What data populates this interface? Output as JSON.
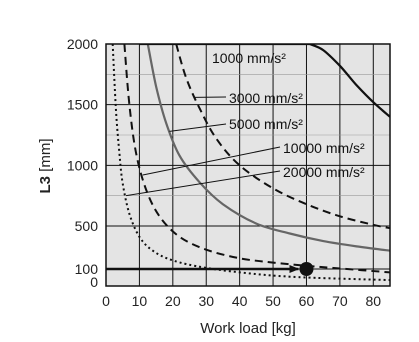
{
  "chart_data": {
    "type": "line",
    "xlabel": "Work load [kg]",
    "ylabel_bold": "L3",
    "ylabel_unit": " [mm]",
    "xlim": [
      0,
      85
    ],
    "ylim": [
      0,
      2000
    ],
    "xticks": [
      0,
      10,
      20,
      30,
      40,
      50,
      60,
      70,
      80
    ],
    "yticks": [
      0,
      100,
      500,
      1000,
      1500,
      2000
    ],
    "grid": true,
    "series": [
      {
        "name": "1000 mm/s²",
        "style": "solid-black",
        "x": [
          61,
          65,
          70,
          75,
          80,
          85
        ],
        "y": [
          2000,
          1950,
          1820,
          1660,
          1520,
          1400
        ]
      },
      {
        "name": "3000 mm/s²",
        "style": "dashed-black",
        "x": [
          21,
          24,
          28,
          33,
          40,
          50,
          60,
          70,
          80,
          85
        ],
        "y": [
          2000,
          1720,
          1470,
          1220,
          1000,
          810,
          680,
          580,
          510,
          480
        ]
      },
      {
        "name": "5000 mm/s²",
        "style": "solid-gray",
        "x": [
          12.5,
          15,
          18,
          22,
          28,
          35,
          45,
          55,
          65,
          75,
          85
        ],
        "y": [
          2000,
          1650,
          1350,
          1080,
          860,
          680,
          520,
          430,
          360,
          310,
          270
        ]
      },
      {
        "name": "10000 mm/s²",
        "style": "dashed-black",
        "x": [
          5.5,
          7,
          9,
          12,
          16,
          22,
          30,
          40,
          50,
          60,
          70,
          85
        ],
        "y": [
          2000,
          1500,
          1100,
          800,
          580,
          400,
          280,
          200,
          160,
          130,
          105,
          80
        ]
      },
      {
        "name": "20000 mm/s²",
        "style": "dotted-black",
        "x": [
          2,
          3,
          4,
          5,
          7,
          10,
          14,
          20,
          30,
          45,
          60,
          85
        ],
        "y": [
          2000,
          1450,
          1100,
          850,
          600,
          400,
          270,
          180,
          110,
          70,
          50,
          35
        ]
      }
    ],
    "example": {
      "x": 60,
      "y": 100,
      "arrow_from_x": 0
    },
    "labels": {
      "l1000": "1000 mm/s²",
      "l3000": "3000 mm/s²",
      "l5000": "5000 mm/s²",
      "l10000": "10000 mm/s²",
      "l20000": "20000 mm/s²"
    }
  }
}
